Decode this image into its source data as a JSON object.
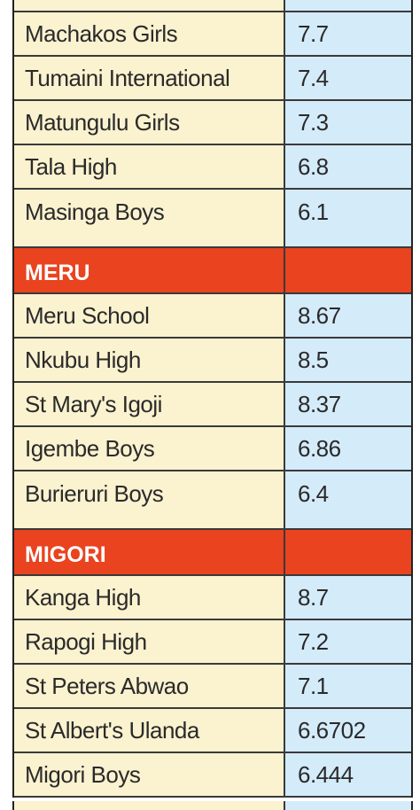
{
  "table": {
    "rows_top": [
      {
        "name": "Machakos Girls",
        "score": "7.7"
      },
      {
        "name": "Tumaini International",
        "score": "7.4"
      },
      {
        "name": "Matungulu Girls",
        "score": "7.3"
      },
      {
        "name": "Tala High",
        "score": "6.8"
      },
      {
        "name": "Masinga Boys",
        "score": "6.1"
      }
    ],
    "meru": {
      "heading": "MERU",
      "rows": [
        {
          "name": "Meru School",
          "score": "8.67"
        },
        {
          "name": "Nkubu High",
          "score": "8.5"
        },
        {
          "name": "St Mary's Igoji",
          "score": "8.37"
        },
        {
          "name": "Igembe Boys",
          "score": "6.86"
        },
        {
          "name": "Burieruri Boys",
          "score": "6.4"
        }
      ]
    },
    "migori": {
      "heading": "MIGORI",
      "rows": [
        {
          "name": "Kanga High",
          "score": "8.7"
        },
        {
          "name": "Rapogi High",
          "score": "7.2"
        },
        {
          "name": "St Peters Abwao",
          "score": "7.1"
        },
        {
          "name": "St Albert's Ulanda",
          "score": "6.6702"
        },
        {
          "name": "Migori Boys",
          "score": "6.444"
        }
      ]
    },
    "colors": {
      "name_bg": "#fbf2cf",
      "score_bg": "#d4ebfa",
      "header_bg": "#e9431f"
    }
  }
}
